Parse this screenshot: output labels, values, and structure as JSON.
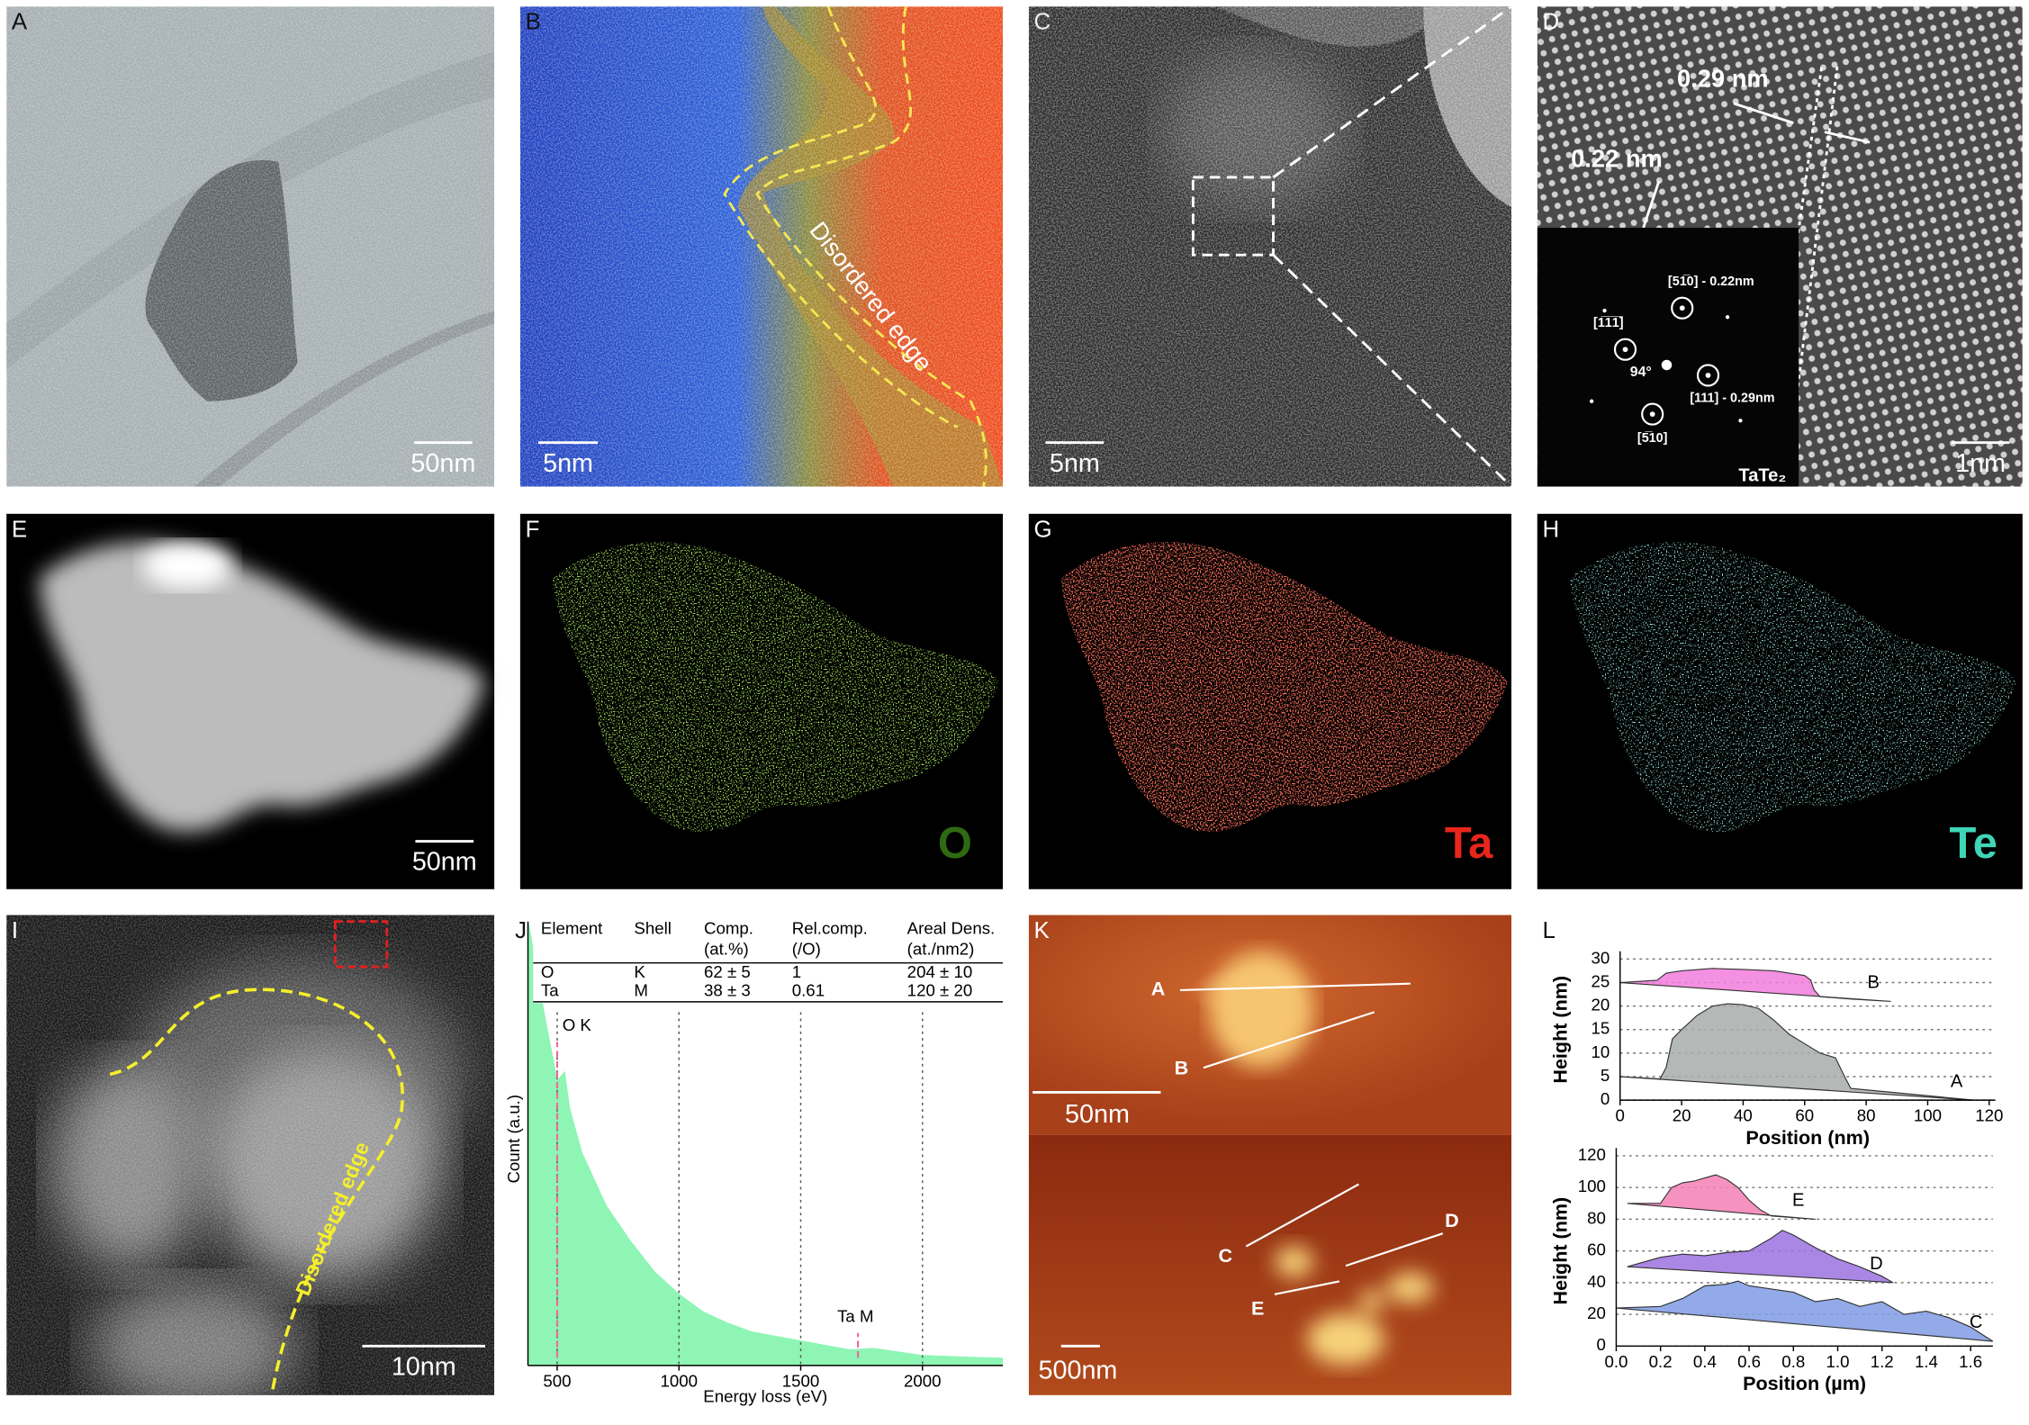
{
  "panels": {
    "a": {
      "label": "A",
      "scale_bar": "50nm"
    },
    "b": {
      "label": "B",
      "scale_bar": "5nm",
      "annotation": "Disordered edge"
    },
    "c": {
      "label": "C",
      "scale_bar": "5nm"
    },
    "d": {
      "label": "D",
      "scale_bar": "1nm",
      "spacings": [
        "0.29 nm",
        "0.22 nm"
      ],
      "fft": {
        "spots": [
          "[51̅0] - 0.22nm",
          "[1̅1̅1̅]",
          "[111] - 0.29nm",
          "[5̅10]"
        ],
        "angle": "94°",
        "material": "TaTe₂"
      }
    },
    "e": {
      "label": "E",
      "scale_bar": "50nm"
    },
    "f": {
      "label": "F",
      "element": "O"
    },
    "g": {
      "label": "G",
      "element": "Ta"
    },
    "h": {
      "label": "H",
      "element": "Te"
    },
    "i": {
      "label": "I",
      "scale_bar": "10nm",
      "annotation": "Disordered edge"
    },
    "j": {
      "label": "J",
      "table": {
        "header": [
          [
            "Element"
          ],
          [
            "Shell"
          ],
          [
            "Comp.",
            "(at.%)"
          ],
          [
            "Rel.comp.",
            "(/O)"
          ],
          [
            "Areal Dens.",
            "(at./nm2)"
          ]
        ],
        "rows": [
          [
            "O",
            "K",
            "62 ± 5",
            "1",
            "204 ± 10"
          ],
          [
            "Ta",
            "M",
            "38 ± 3",
            "0.61",
            "120 ± 20"
          ]
        ]
      },
      "spectrum": {
        "x": [
          380,
          400,
          450,
          500,
          530,
          550,
          600,
          650,
          700,
          800,
          900,
          1000,
          1100,
          1200,
          1300,
          1400,
          1500,
          1600,
          1700,
          1800,
          1900,
          2000,
          2100,
          2200,
          2330
        ],
        "values": [
          100,
          94,
          78,
          64,
          66,
          58,
          48,
          42,
          36,
          28,
          21,
          16,
          12,
          9.5,
          7.5,
          6.5,
          5.5,
          4.5,
          3.5,
          3.8,
          3,
          2.2,
          2,
          1.8,
          1.6
        ],
        "xlim": [
          380,
          2330
        ],
        "ylim": [
          0,
          100
        ],
        "xticks": [
          500,
          1000,
          1500,
          2000
        ],
        "grid": true,
        "x_label": "Energy loss (eV)",
        "y_label": "Count (a.u.)",
        "color": "#8ef5b4",
        "edges": [
          {
            "label": "O K",
            "value": 500
          },
          {
            "label": "Ta M",
            "value": 1735
          }
        ]
      }
    },
    "k": {
      "label": "K",
      "top": {
        "scale_bar": "50nm",
        "profiles": [
          "A",
          "B"
        ]
      },
      "bottom": {
        "scale_bar": "500nm",
        "profiles": [
          "C",
          "D",
          "E"
        ]
      }
    },
    "l": {
      "label": "L",
      "top": {
        "xlim": [
          0,
          122
        ],
        "ylim": [
          0,
          30
        ],
        "xticks": [
          0,
          20,
          40,
          60,
          80,
          100,
          120
        ],
        "yticks": [
          0,
          5,
          10,
          15,
          20,
          25,
          30
        ],
        "x_label": "Position (nm)",
        "y_label": "Height (nm)",
        "series": [
          {
            "name": "B",
            "color": "#f27ddc",
            "x": [
              0,
              12,
              15,
              20,
              30,
              40,
              50,
              55,
              60,
              62,
              63,
              65,
              75,
              88
            ],
            "values": [
              25,
              25.5,
              27,
              27.5,
              28,
              27.8,
              27.5,
              27,
              26.5,
              25.5,
              23.5,
              22,
              21.5,
              21
            ]
          },
          {
            "name": "A",
            "color": "#a7aba9",
            "x": [
              0,
              13,
              15,
              17,
              20,
              25,
              30,
              35,
              40,
              45,
              50,
              55,
              60,
              65,
              70,
              73,
              75,
              115
            ],
            "values": [
              5,
              4.5,
              7,
              13,
              15,
              18,
              20,
              20.5,
              20.3,
              19.5,
              17,
              14,
              12,
              10,
              9,
              5,
              2.5,
              0
            ]
          }
        ]
      },
      "bottom": {
        "xlim": [
          0,
          1.7
        ],
        "ylim": [
          0,
          120
        ],
        "xticks": [
          {
            "value": 0,
            "label": "0.0"
          },
          0.2,
          0.4,
          0.6,
          0.8,
          {
            "value": 1,
            "label": "1.0"
          },
          1.2,
          1.4,
          1.6
        ],
        "yticks": [
          0,
          20,
          40,
          60,
          80,
          100,
          120
        ],
        "x_label": "Position (µm)",
        "y_label": "Height (nm)",
        "series": [
          {
            "name": "E",
            "color": "#f47fb5",
            "x": [
              0.05,
              0.2,
              0.25,
              0.3,
              0.35,
              0.4,
              0.45,
              0.5,
              0.55,
              0.6,
              0.65,
              0.7,
              0.9
            ],
            "values": [
              90,
              90,
              100,
              103,
              104,
              106,
              108,
              105,
              100,
              92,
              86,
              82,
              80
            ]
          },
          {
            "name": "D",
            "color": "#9b72e0",
            "x": [
              0.05,
              0.2,
              0.3,
              0.4,
              0.5,
              0.6,
              0.7,
              0.75,
              0.8,
              0.9,
              1,
              1.1,
              1.2,
              1.25
            ],
            "values": [
              50,
              56,
              58,
              57,
              59,
              60,
              68,
              73,
              70,
              62,
              55,
              50,
              44,
              40
            ]
          },
          {
            "name": "C",
            "color": "#7f9be3",
            "x": [
              0,
              0.2,
              0.3,
              0.4,
              0.5,
              0.55,
              0.6,
              0.7,
              0.8,
              0.9,
              1,
              1.1,
              1.2,
              1.3,
              1.4,
              1.5,
              1.6,
              1.7
            ],
            "values": [
              24,
              25,
              30,
              38,
              39,
              41,
              38,
              36,
              34,
              28,
              30,
              25,
              28,
              20,
              22,
              18,
              12,
              3
            ]
          }
        ]
      }
    }
  }
}
